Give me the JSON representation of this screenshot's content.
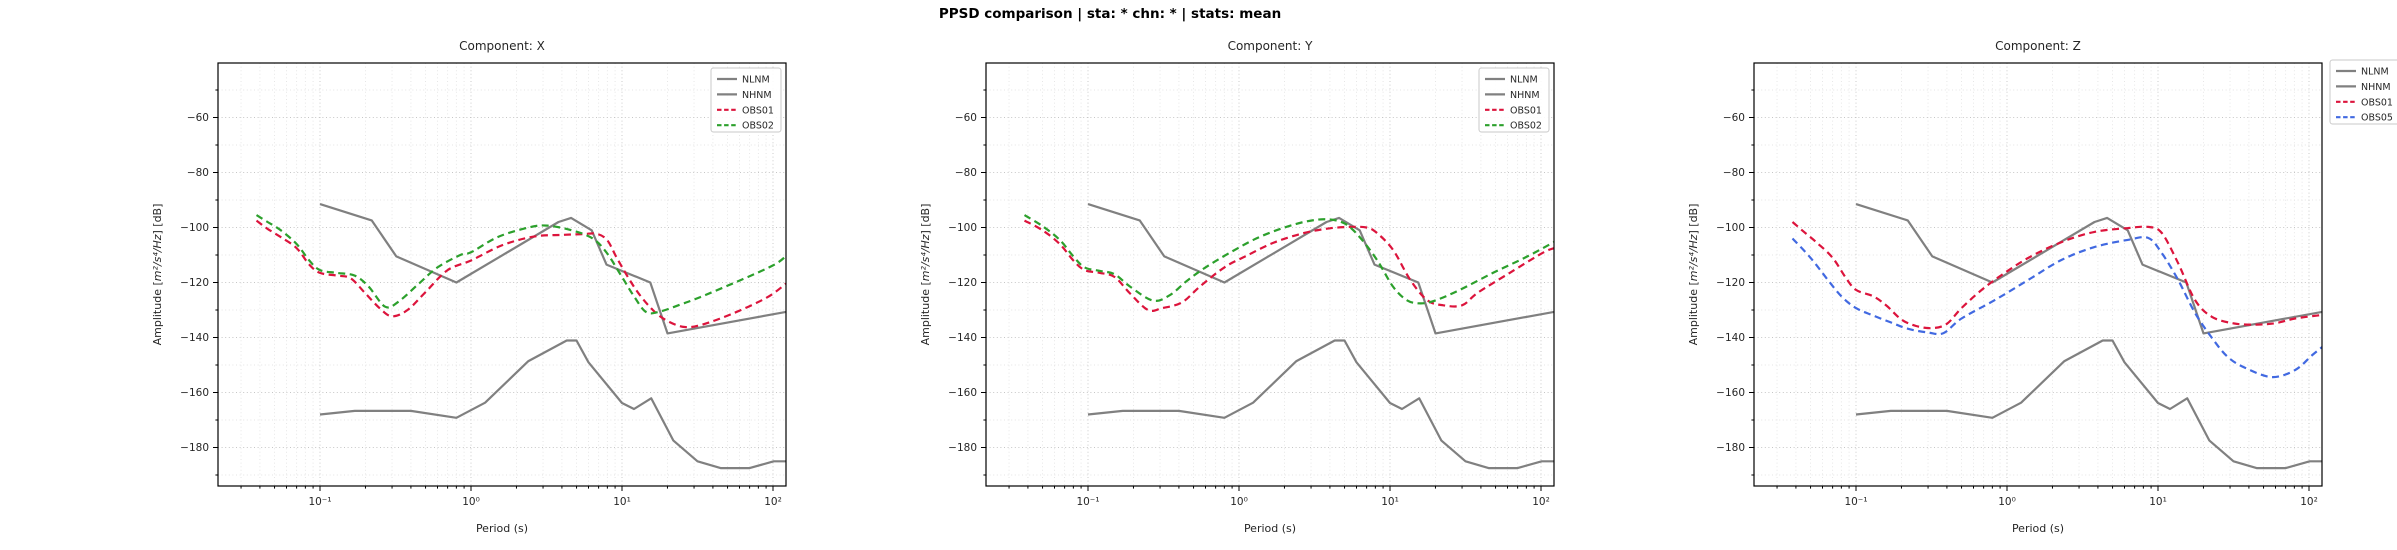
{
  "figure": {
    "suptitle": "PPSD comparison  |  sta: *  chn: *  |  stats: mean"
  },
  "style": {
    "background": "#ffffff",
    "spine_color": "#000000",
    "tick_color": "#000000",
    "grid_major_color": "#c6c6c6",
    "grid_minor_color": "#e4e4e4",
    "gray": "#808080",
    "crimson": "#dc143c",
    "green": "#2ca02c",
    "blue": "#4169e1",
    "legend_border": "#c9c9c9",
    "legend_bg": "#ffffff"
  },
  "axis": {
    "xlabel": "Period (s)",
    "ylabel": "Amplitude [m²/s⁴/Hz] [dB]",
    "ylabel_parts": [
      "Amplitude [",
      "m²/s⁴/Hz",
      "] [dB]"
    ],
    "xticks": [
      {
        "value": 0.1,
        "label": "10⁻¹"
      },
      {
        "value": 1,
        "label": "10⁰"
      },
      {
        "value": 10,
        "label": "10¹"
      },
      {
        "value": 100,
        "label": "10²"
      }
    ],
    "yticks": [
      {
        "value": -60,
        "label": "−60"
      },
      {
        "value": -80,
        "label": "−80"
      },
      {
        "value": -100,
        "label": "−100"
      },
      {
        "value": -120,
        "label": "−120"
      },
      {
        "value": -140,
        "label": "−140"
      },
      {
        "value": -160,
        "label": "−160"
      },
      {
        "value": -180,
        "label": "−180"
      }
    ],
    "yticks_minor": [
      -50,
      -70,
      -90,
      -110,
      -130,
      -150,
      -170,
      -190
    ],
    "xlim": [
      0.0215,
      122.5
    ],
    "ylim": [
      -194,
      -40.2
    ]
  },
  "shared_series": {
    "NLNM": [
      [
        0.1,
        -168
      ],
      [
        0.17,
        -166.7
      ],
      [
        0.4,
        -166.7
      ],
      [
        0.8,
        -169.2
      ],
      [
        1.24,
        -163.7
      ],
      [
        2.4,
        -148.6
      ],
      [
        4.3,
        -141.1
      ],
      [
        5,
        -141.1
      ],
      [
        6,
        -149
      ],
      [
        10,
        -163.8
      ],
      [
        12,
        -166
      ],
      [
        15.6,
        -162.1
      ],
      [
        21.9,
        -177.5
      ],
      [
        31.6,
        -185
      ],
      [
        45,
        -187.5
      ],
      [
        70,
        -187.5
      ],
      [
        101,
        -185
      ],
      [
        122,
        -185
      ]
    ],
    "NHNM": [
      [
        0.1,
        -91.5
      ],
      [
        0.22,
        -97.4
      ],
      [
        0.32,
        -110.5
      ],
      [
        0.8,
        -120
      ],
      [
        3.8,
        -98
      ],
      [
        4.6,
        -96.5
      ],
      [
        6.3,
        -101
      ],
      [
        7.9,
        -113.5
      ],
      [
        15.4,
        -120
      ],
      [
        20,
        -138.5
      ],
      [
        122,
        -130.7
      ]
    ]
  },
  "chart_data": [
    {
      "id": "x",
      "type": "line",
      "title": "Component: X",
      "xscale": "log",
      "legend_position": "inside-top-right",
      "legend": [
        {
          "label": "NLNM",
          "color_key": "gray",
          "dashed": false
        },
        {
          "label": "NHNM",
          "color_key": "gray",
          "dashed": false
        },
        {
          "label": "OBS01",
          "color_key": "crimson",
          "dashed": true
        },
        {
          "label": "OBS02",
          "color_key": "green",
          "dashed": true
        }
      ],
      "series": [
        {
          "name": "NLNM",
          "ref": "NLNM",
          "color_key": "gray",
          "dashed": false,
          "smooth": false
        },
        {
          "name": "NHNM",
          "ref": "NHNM",
          "color_key": "gray",
          "dashed": false,
          "smooth": false
        },
        {
          "name": "OBS01",
          "color_key": "crimson",
          "dashed": true,
          "smooth": true,
          "points": [
            [
              0.038,
              -97.5
            ],
            [
              0.045,
              -100.5
            ],
            [
              0.055,
              -103.5
            ],
            [
              0.07,
              -107.5
            ],
            [
              0.085,
              -113.5
            ],
            [
              0.1,
              -116.5
            ],
            [
              0.13,
              -117.5
            ],
            [
              0.16,
              -118.5
            ],
            [
              0.2,
              -124
            ],
            [
              0.25,
              -129.5
            ],
            [
              0.3,
              -132.3
            ],
            [
              0.38,
              -130
            ],
            [
              0.5,
              -123.5
            ],
            [
              0.7,
              -115.5
            ],
            [
              1,
              -112
            ],
            [
              1.6,
              -106.5
            ],
            [
              2.6,
              -103.3
            ],
            [
              4,
              -102.7
            ],
            [
              5.5,
              -102.4
            ],
            [
              6.8,
              -102.3
            ],
            [
              8,
              -104.7
            ],
            [
              9.4,
              -111.8
            ],
            [
              12.4,
              -122.7
            ],
            [
              16,
              -130
            ],
            [
              20,
              -134
            ],
            [
              26,
              -136.2
            ],
            [
              34,
              -135.3
            ],
            [
              54,
              -131.3
            ],
            [
              91,
              -125.5
            ],
            [
              122,
              -120.4
            ]
          ]
        },
        {
          "name": "OBS02",
          "color_key": "green",
          "dashed": true,
          "smooth": true,
          "points": [
            [
              0.038,
              -95.5
            ],
            [
              0.045,
              -98
            ],
            [
              0.055,
              -101
            ],
            [
              0.07,
              -106
            ],
            [
              0.085,
              -112
            ],
            [
              0.1,
              -115.5
            ],
            [
              0.13,
              -116.5
            ],
            [
              0.17,
              -117.5
            ],
            [
              0.21,
              -121.5
            ],
            [
              0.27,
              -128.8
            ],
            [
              0.33,
              -127
            ],
            [
              0.45,
              -120.5
            ],
            [
              0.6,
              -114.5
            ],
            [
              0.85,
              -110
            ],
            [
              1,
              -109
            ],
            [
              1.5,
              -103.5
            ],
            [
              2.4,
              -100
            ],
            [
              3.2,
              -99.3
            ],
            [
              4.7,
              -101.1
            ],
            [
              6.4,
              -104
            ],
            [
              7.9,
              -109.1
            ],
            [
              10,
              -118
            ],
            [
              12,
              -125
            ],
            [
              14.5,
              -130.8
            ],
            [
              18,
              -130.5
            ],
            [
              25,
              -127.8
            ],
            [
              33,
              -125.3
            ],
            [
              60,
              -119.3
            ],
            [
              100,
              -113.8
            ],
            [
              122,
              -110.4
            ]
          ]
        }
      ]
    },
    {
      "id": "y",
      "type": "line",
      "title": "Component: Y",
      "xscale": "log",
      "legend_position": "inside-top-right",
      "legend": [
        {
          "label": "NLNM",
          "color_key": "gray",
          "dashed": false
        },
        {
          "label": "NHNM",
          "color_key": "gray",
          "dashed": false
        },
        {
          "label": "OBS01",
          "color_key": "crimson",
          "dashed": true
        },
        {
          "label": "OBS02",
          "color_key": "green",
          "dashed": true
        }
      ],
      "series": [
        {
          "name": "NLNM",
          "ref": "NLNM",
          "color_key": "gray",
          "dashed": false,
          "smooth": false
        },
        {
          "name": "NHNM",
          "ref": "NHNM",
          "color_key": "gray",
          "dashed": false,
          "smooth": false
        },
        {
          "name": "OBS01",
          "color_key": "crimson",
          "dashed": true,
          "smooth": true,
          "points": [
            [
              0.038,
              -97.5
            ],
            [
              0.05,
              -101
            ],
            [
              0.065,
              -106
            ],
            [
              0.08,
              -112
            ],
            [
              0.095,
              -115.5
            ],
            [
              0.12,
              -116.5
            ],
            [
              0.15,
              -118
            ],
            [
              0.19,
              -124
            ],
            [
              0.25,
              -130
            ],
            [
              0.31,
              -129.3
            ],
            [
              0.42,
              -127.2
            ],
            [
              0.55,
              -121.5
            ],
            [
              0.8,
              -114.5
            ],
            [
              1.1,
              -110.5
            ],
            [
              1.7,
              -105.5
            ],
            [
              2.7,
              -102
            ],
            [
              4,
              -100.3
            ],
            [
              5.5,
              -99.8
            ],
            [
              7,
              -100
            ],
            [
              8.2,
              -102
            ],
            [
              10.5,
              -108.2
            ],
            [
              13.6,
              -119
            ],
            [
              17.6,
              -126.4
            ],
            [
              22.5,
              -128.3
            ],
            [
              30,
              -128.3
            ],
            [
              38,
              -123.8
            ],
            [
              62,
              -116.5
            ],
            [
              102,
              -109.3
            ],
            [
              122,
              -107.5
            ]
          ]
        },
        {
          "name": "OBS02",
          "color_key": "green",
          "dashed": true,
          "smooth": true,
          "points": [
            [
              0.038,
              -95.5
            ],
            [
              0.05,
              -99.5
            ],
            [
              0.065,
              -104.5
            ],
            [
              0.08,
              -110.5
            ],
            [
              0.095,
              -114.5
            ],
            [
              0.12,
              -115.8
            ],
            [
              0.15,
              -117
            ],
            [
              0.19,
              -121.5
            ],
            [
              0.27,
              -126.6
            ],
            [
              0.35,
              -124.5
            ],
            [
              0.45,
              -119.5
            ],
            [
              0.6,
              -114.5
            ],
            [
              0.85,
              -109.5
            ],
            [
              1.3,
              -104
            ],
            [
              2,
              -100
            ],
            [
              2.8,
              -97.8
            ],
            [
              3.8,
              -97
            ],
            [
              5,
              -98.5
            ],
            [
              6.3,
              -103.5
            ],
            [
              8.2,
              -111.8
            ],
            [
              10.5,
              -121.6
            ],
            [
              13,
              -126.5
            ],
            [
              16,
              -127.6
            ],
            [
              20,
              -126.5
            ],
            [
              29,
              -122.7
            ],
            [
              48,
              -116.5
            ],
            [
              80,
              -110.7
            ],
            [
              122,
              -105.3
            ]
          ]
        }
      ]
    },
    {
      "id": "z",
      "type": "line",
      "title": "Component: Z",
      "xscale": "log",
      "legend_position": "outside-top-right",
      "legend": [
        {
          "label": "NLNM",
          "color_key": "gray",
          "dashed": false
        },
        {
          "label": "NHNM",
          "color_key": "gray",
          "dashed": false
        },
        {
          "label": "OBS01",
          "color_key": "crimson",
          "dashed": true
        },
        {
          "label": "OBS05",
          "color_key": "blue",
          "dashed": true
        }
      ],
      "series": [
        {
          "name": "NLNM",
          "ref": "NLNM",
          "color_key": "gray",
          "dashed": false,
          "smooth": false
        },
        {
          "name": "NHNM",
          "ref": "NHNM",
          "color_key": "gray",
          "dashed": false,
          "smooth": false
        },
        {
          "name": "OBS01",
          "color_key": "crimson",
          "dashed": true,
          "smooth": true,
          "points": [
            [
              0.038,
              -98
            ],
            [
              0.045,
              -101.5
            ],
            [
              0.055,
              -105.5
            ],
            [
              0.07,
              -111
            ],
            [
              0.085,
              -118
            ],
            [
              0.1,
              -122.7
            ],
            [
              0.13,
              -125
            ],
            [
              0.16,
              -128.5
            ],
            [
              0.2,
              -133.5
            ],
            [
              0.25,
              -135.8
            ],
            [
              0.32,
              -136.6
            ],
            [
              0.4,
              -135
            ],
            [
              0.5,
              -129.3
            ],
            [
              0.68,
              -122.7
            ],
            [
              0.92,
              -117.3
            ],
            [
              1.38,
              -111.1
            ],
            [
              2.3,
              -105.3
            ],
            [
              3.8,
              -101.6
            ],
            [
              6.3,
              -100.2
            ],
            [
              8.6,
              -99.8
            ],
            [
              10.6,
              -102
            ],
            [
              13.6,
              -113
            ],
            [
              17.6,
              -126.4
            ],
            [
              22.8,
              -132.5
            ],
            [
              32,
              -134.9
            ],
            [
              45,
              -135.3
            ],
            [
              60,
              -134.8
            ],
            [
              81,
              -133.1
            ],
            [
              122,
              -131.8
            ]
          ]
        },
        {
          "name": "OBS05",
          "color_key": "blue",
          "dashed": true,
          "smooth": true,
          "points": [
            [
              0.038,
              -104
            ],
            [
              0.05,
              -111
            ],
            [
              0.065,
              -119
            ],
            [
              0.08,
              -125
            ],
            [
              0.1,
              -129.3
            ],
            [
              0.13,
              -132
            ],
            [
              0.17,
              -134.5
            ],
            [
              0.22,
              -136.8
            ],
            [
              0.3,
              -138.2
            ],
            [
              0.38,
              -138.4
            ],
            [
              0.5,
              -133.1
            ],
            [
              0.83,
              -126.4
            ],
            [
              1.38,
              -119.1
            ],
            [
              2.3,
              -111.8
            ],
            [
              3.8,
              -107.1
            ],
            [
              6.3,
              -104.5
            ],
            [
              8.6,
              -103.8
            ],
            [
              10.6,
              -109.3
            ],
            [
              13.6,
              -119.1
            ],
            [
              17.6,
              -131.1
            ],
            [
              22.8,
              -140.2
            ],
            [
              29,
              -147.1
            ],
            [
              38,
              -151.1
            ],
            [
              57,
              -154.4
            ],
            [
              81,
              -151.8
            ],
            [
              105,
              -146.4
            ],
            [
              122,
              -143.5
            ]
          ]
        }
      ]
    }
  ]
}
